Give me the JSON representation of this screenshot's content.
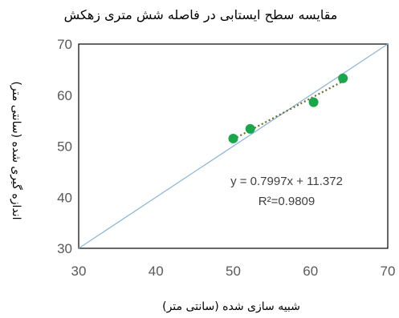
{
  "chart_data": {
    "type": "scatter",
    "title": "مقایسه سطح ایستابی در فاصله شش متری زهکش",
    "xlabel": "شبیه سازی شده (سانتی متر)",
    "ylabel": "اندازه گیری شده (سانتی متر)",
    "xlim": [
      30,
      70
    ],
    "ylim": [
      30,
      70
    ],
    "x_ticks": [
      "30",
      "40",
      "50",
      "60",
      "70"
    ],
    "y_ticks": [
      "30",
      "40",
      "50",
      "60",
      "70"
    ],
    "grid": false,
    "points": [
      {
        "x": 50.0,
        "y": 51.5
      },
      {
        "x": 52.2,
        "y": 53.4
      },
      {
        "x": 60.4,
        "y": 58.6
      },
      {
        "x": 64.2,
        "y": 63.3
      }
    ],
    "reference_line": {
      "x": [
        30,
        70
      ],
      "y": [
        30,
        70
      ]
    },
    "trendline": {
      "slope": 0.7997,
      "intercept": 11.372
    },
    "equation_label": "y = 0.7997x + 11.372",
    "r2_label": "R²=0.9809",
    "colors": {
      "points": "#1aa64a",
      "trendline": "#6b6b2a",
      "reference_line": "#8fb8da",
      "frame": "#000000"
    }
  }
}
